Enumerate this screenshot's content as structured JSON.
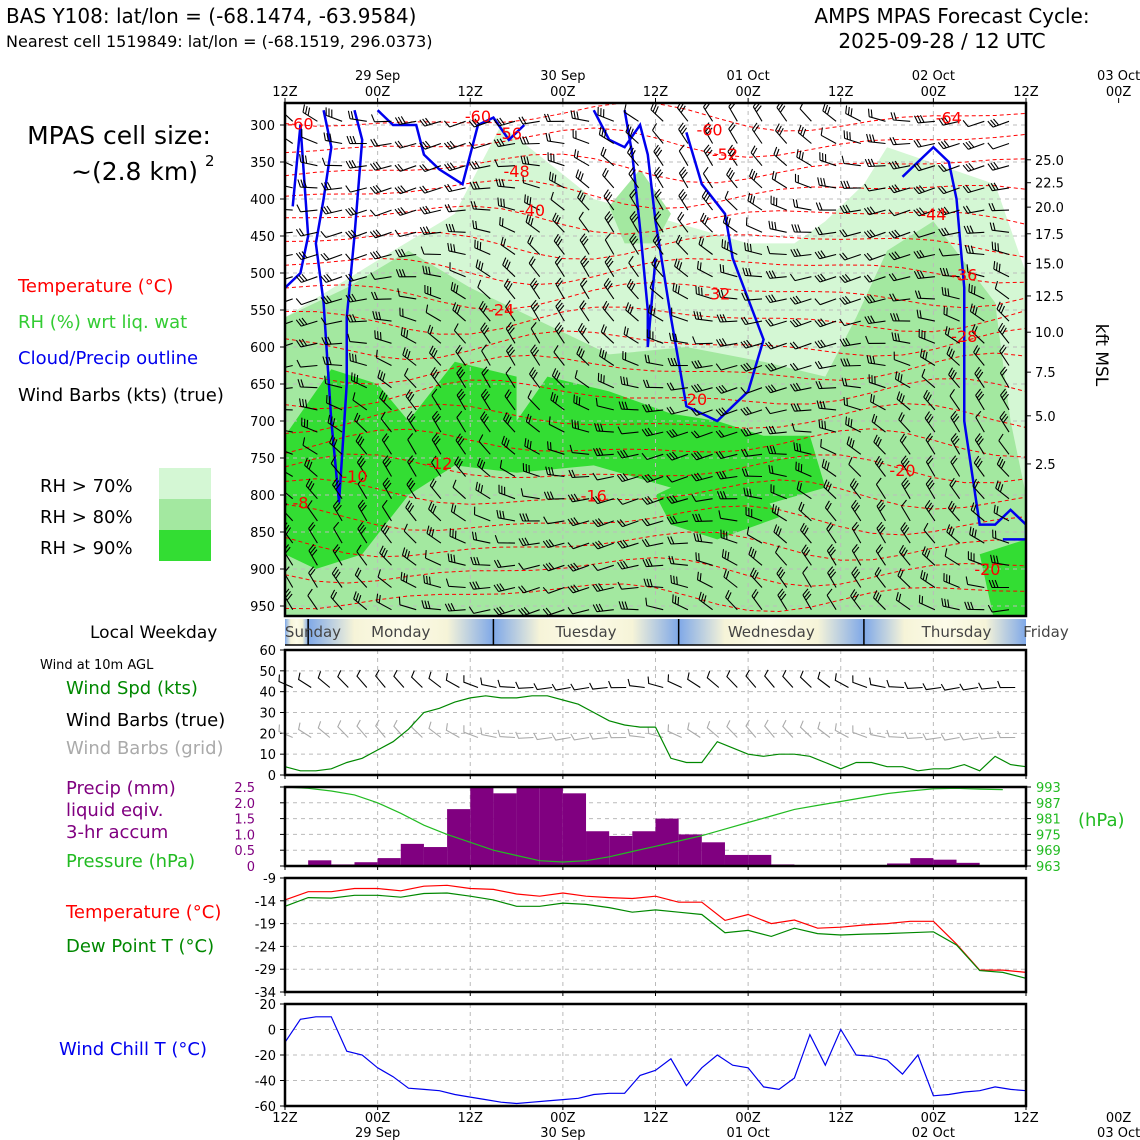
{
  "header": {
    "station": "BAS Y108: lat/lon = (-68.1474, -63.9584)",
    "nearest": "Nearest cell 1519849: lat/lon = (-68.1519, 296.0373)",
    "forecast_line1": "AMPS MPAS Forecast Cycle:",
    "forecast_line2": "2025-09-28 / 12 UTC"
  },
  "cell_size": {
    "line1": "MPAS cell size:",
    "line2": "~(2.8 km)",
    "exponent": "2"
  },
  "legend": {
    "temperature": "Temperature (°C)",
    "rh": "RH (%) wrt liq. wat",
    "cloud": "Cloud/Precip outline",
    "barbs": "Wind Barbs (kts) (true)",
    "rh70": "RH > 70%",
    "rh80": "RH > 80%",
    "rh90": "RH > 90%"
  },
  "colors": {
    "temperature": "#ff0000",
    "rh_label": "#33cc33",
    "cloud": "#0000ee",
    "rh70": "#d4f7d4",
    "rh80": "#a3e8a0",
    "rh90": "#33dd33",
    "precip": "#800080",
    "pressure": "#22bb22",
    "dewpoint": "#008800",
    "windchill": "#0000ee",
    "grid_barb": "#aaaaaa"
  },
  "time_axis": {
    "top_hours": [
      "12Z",
      "00Z",
      "12Z",
      "00Z",
      "12Z",
      "00Z",
      "12Z",
      "00Z",
      "12Z",
      "00Z",
      "12Z"
    ],
    "bottom_hours": [
      "12Z",
      "00Z",
      "12Z",
      "00Z",
      "12Z",
      "00Z",
      "12Z",
      "00Z",
      "12Z",
      "00Z",
      "12Z"
    ],
    "dates": [
      "29 Sep",
      "30 Sep",
      "01 Oct",
      "02 Oct",
      "03 Oct"
    ]
  },
  "weekday": {
    "label": "Local Weekday",
    "days": [
      "Sunday",
      "Monday",
      "Tuesday",
      "Wednesday",
      "Thursday",
      "Friday"
    ]
  },
  "chart_data": [
    {
      "type": "heatmap",
      "title": "",
      "ylabel_right": "kft MSL",
      "pressure_ticks": [
        300,
        350,
        400,
        450,
        500,
        550,
        600,
        650,
        700,
        750,
        800,
        850,
        900,
        950
      ],
      "height_ticks": [
        {
          "p": 347,
          "label": "25.0"
        },
        {
          "p": 378,
          "label": "22.5"
        },
        {
          "p": 411,
          "label": "20.0"
        },
        {
          "p": 447,
          "label": "17.5"
        },
        {
          "p": 487,
          "label": "15.0"
        },
        {
          "p": 531,
          "label": "12.5"
        },
        {
          "p": 580,
          "label": "10.0"
        },
        {
          "p": 634,
          "label": "7.5"
        },
        {
          "p": 693,
          "label": "5.0"
        },
        {
          "p": 758,
          "label": "2.5"
        }
      ],
      "ylim": [
        975,
        280
      ],
      "isotherm_labels": [
        {
          "x": 2,
          "p": 298,
          "text": "-60"
        },
        {
          "x": 25,
          "p": 288,
          "text": "-60"
        },
        {
          "x": 29,
          "p": 311,
          "text": "-56"
        },
        {
          "x": 55,
          "p": 306,
          "text": "-60"
        },
        {
          "x": 57,
          "p": 339,
          "text": "-52"
        },
        {
          "x": 86,
          "p": 290,
          "text": "-64"
        },
        {
          "x": 30,
          "p": 362,
          "text": "-48"
        },
        {
          "x": 32,
          "p": 415,
          "text": "-40"
        },
        {
          "x": 84,
          "p": 420,
          "text": "-44"
        },
        {
          "x": 56,
          "p": 528,
          "text": "-32"
        },
        {
          "x": 28,
          "p": 549,
          "text": "-24"
        },
        {
          "x": 88,
          "p": 502,
          "text": "-36"
        },
        {
          "x": 88,
          "p": 585,
          "text": "-28"
        },
        {
          "x": 53,
          "p": 670,
          "text": "-20"
        },
        {
          "x": 80,
          "p": 766,
          "text": "-20"
        },
        {
          "x": 20,
          "p": 757,
          "text": "-12"
        },
        {
          "x": 40,
          "p": 801,
          "text": "-16"
        },
        {
          "x": 9,
          "p": 774,
          "text": "-10"
        },
        {
          "x": 2,
          "p": 810,
          "text": "-8"
        },
        {
          "x": 91,
          "p": 900,
          "text": "-20"
        }
      ]
    },
    {
      "type": "line",
      "title": "Wind at 10m AGL",
      "labels": [
        "Wind Spd (kts)",
        "Wind Barbs (true)",
        "Wind Barbs (grid)"
      ],
      "ylim": [
        0,
        60
      ],
      "yticks": [
        0,
        10,
        20,
        30,
        40,
        50,
        60
      ],
      "x": [
        0,
        2,
        4,
        6,
        8,
        10,
        12,
        14,
        16,
        18,
        20,
        22,
        24,
        26,
        28,
        30,
        32,
        34,
        36,
        38,
        40,
        42,
        44,
        46,
        48,
        50,
        52,
        54,
        56,
        58,
        60,
        62,
        64,
        66,
        68,
        70,
        72,
        74,
        76,
        78,
        80,
        82,
        84,
        86,
        88,
        90,
        92,
        94,
        96
      ],
      "series": [
        {
          "name": "Wind Spd (kts)",
          "values": [
            4,
            2,
            2,
            3,
            6,
            8,
            12,
            16,
            22,
            30,
            32,
            35,
            37,
            38,
            37,
            37,
            38,
            38,
            36,
            34,
            30,
            26,
            24,
            23,
            23,
            8,
            6,
            6,
            16,
            13,
            10,
            9,
            10,
            10,
            9,
            6,
            3,
            6,
            6,
            4,
            4,
            2,
            3,
            3,
            5,
            2,
            9,
            5,
            4
          ]
        }
      ]
    },
    {
      "type": "bar",
      "title": "",
      "labels": [
        "Precip (mm)",
        "liquid eqiv.",
        "3-hr accum",
        "Pressure (hPa)"
      ],
      "ylim_left": [
        0,
        2.5
      ],
      "yticks_left": [
        "0",
        "0.5",
        "1.0",
        "1.5",
        "2.0",
        "2.5"
      ],
      "ylim_right": [
        963,
        993
      ],
      "yticks_right": [
        "963",
        "969",
        "975",
        "981",
        "987",
        "993"
      ],
      "ylabel_right": "(hPa)",
      "x": [
        0,
        3,
        6,
        9,
        12,
        15,
        18,
        21,
        24,
        27,
        30,
        33,
        36,
        39,
        42,
        45,
        48,
        51,
        54,
        57,
        60,
        63,
        66,
        69,
        72,
        75,
        78,
        81,
        84,
        87,
        90,
        93
      ],
      "precip_values": [
        0,
        0.18,
        0.05,
        0.12,
        0.25,
        0.7,
        0.6,
        1.8,
        3.0,
        2.3,
        2.5,
        2.5,
        2.3,
        1.1,
        0.95,
        1.1,
        1.5,
        1.0,
        0.75,
        0.35,
        0.35,
        0.05,
        0,
        0,
        0,
        0,
        0.08,
        0.25,
        0.2,
        0.1,
        0,
        0
      ],
      "pressure_values": [
        993,
        992.5,
        991.5,
        990,
        987,
        983,
        978.5,
        975,
        972,
        969,
        967,
        965,
        964.5,
        965,
        966.5,
        968.5,
        970.5,
        972.5,
        974.5,
        977,
        979.5,
        982,
        984.5,
        986,
        987.5,
        989,
        990.5,
        991.5,
        992.3,
        992.5,
        992.2,
        992
      ]
    },
    {
      "type": "line",
      "title": "",
      "labels": [
        "Temperature (°C)",
        "Dew Point T (°C)"
      ],
      "ylim": [
        -34,
        -9
      ],
      "yticks": [
        "-9",
        "-14",
        "-19",
        "-24",
        "-29",
        "-34"
      ],
      "x": [
        0,
        3,
        6,
        9,
        12,
        15,
        18,
        21,
        24,
        27,
        30,
        33,
        36,
        39,
        42,
        45,
        48,
        51,
        54,
        57,
        60,
        63,
        66,
        69,
        72,
        75,
        78,
        81,
        84,
        87,
        90,
        93,
        96
      ],
      "series": [
        {
          "name": "Temperature (°C)",
          "values": [
            -13.8,
            -12,
            -12,
            -11.3,
            -11.3,
            -11.8,
            -10.8,
            -10.6,
            -11.3,
            -11.5,
            -12.5,
            -13,
            -12.3,
            -13,
            -13.3,
            -13.5,
            -13,
            -14.3,
            -14.3,
            -18.3,
            -17,
            -19,
            -18.2,
            -20,
            -19.8,
            -19.3,
            -19,
            -18.5,
            -18.5,
            -23.5,
            -29.2,
            -29.2,
            -29.7
          ]
        },
        {
          "name": "Dew Point T (°C)",
          "values": [
            -15.2,
            -13.3,
            -13.4,
            -12.8,
            -12.8,
            -13.2,
            -12.4,
            -12.3,
            -13,
            -13.8,
            -15.2,
            -15.2,
            -14.5,
            -14.8,
            -15.5,
            -16.5,
            -16,
            -16.5,
            -17,
            -21,
            -20.5,
            -21.8,
            -20,
            -21.2,
            -21.5,
            -21.3,
            -21.2,
            -21,
            -20.8,
            -23.7,
            -29.3,
            -29.7,
            -31
          ]
        }
      ]
    },
    {
      "type": "line",
      "title": "",
      "labels": [
        "Wind Chill T (°C)"
      ],
      "ylim": [
        -60,
        20
      ],
      "yticks": [
        "-60",
        "-40",
        "-20",
        "0",
        "20"
      ],
      "x": [
        0,
        2,
        4,
        6,
        8,
        10,
        12,
        14,
        16,
        18,
        20,
        22,
        24,
        26,
        28,
        30,
        32,
        34,
        36,
        38,
        40,
        42,
        44,
        46,
        48,
        50,
        52,
        54,
        56,
        58,
        60,
        62,
        64,
        66,
        68,
        70,
        72,
        74,
        76,
        78,
        80,
        82,
        84,
        86,
        88,
        90,
        92,
        94,
        96
      ],
      "series": [
        {
          "name": "Wind Chill T (°C)",
          "values": [
            -10,
            8,
            10,
            10,
            -17,
            -20,
            -30,
            -37,
            -46,
            -47,
            -48,
            -51,
            -53,
            -55,
            -57,
            -58,
            -57,
            -56,
            -55,
            -54,
            -51,
            -50,
            -50,
            -36,
            -32,
            -23,
            -44,
            -30,
            -20,
            -28,
            -30,
            -45,
            -47,
            -38,
            -4,
            -28,
            0,
            -20,
            -21,
            -24,
            -35,
            -20,
            -52,
            -51,
            -49,
            -48,
            -45,
            -47,
            -48
          ]
        }
      ]
    }
  ]
}
